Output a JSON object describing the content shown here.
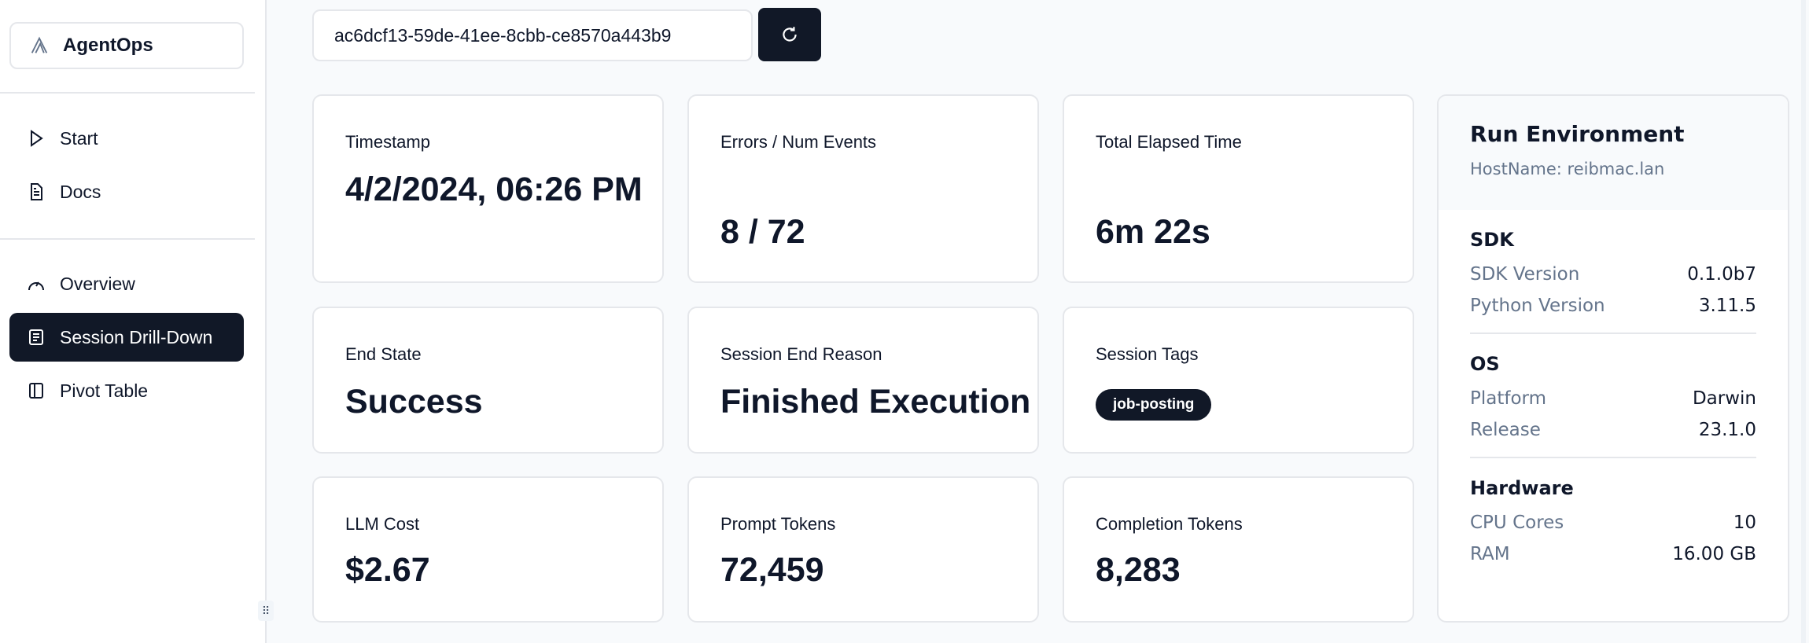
{
  "sidebar": {
    "brand": "AgentOps",
    "items": [
      {
        "label": "Start",
        "icon": "play-icon"
      },
      {
        "label": "Docs",
        "icon": "document-icon"
      },
      {
        "label": "Overview",
        "icon": "gauge-icon"
      },
      {
        "label": "Session Drill-Down",
        "icon": "list-icon",
        "active": true
      },
      {
        "label": "Pivot Table",
        "icon": "columns-icon"
      }
    ]
  },
  "session": {
    "id": "ac6dcf13-59de-41ee-8cbb-ce8570a443b9"
  },
  "cards": [
    {
      "label": "Timestamp",
      "value": "4/2/2024, 06:26 PM"
    },
    {
      "label": "Errors / Num Events",
      "value": "8 / 72"
    },
    {
      "label": "Total Elapsed Time",
      "value": "6m 22s"
    },
    {
      "label": "End State",
      "value": "Success"
    },
    {
      "label": "Session End Reason",
      "value": "Finished Execution"
    },
    {
      "label": "Session Tags",
      "tags": [
        "job-posting"
      ]
    },
    {
      "label": "LLM Cost",
      "value": "$2.67"
    },
    {
      "label": "Prompt Tokens",
      "value": "72,459"
    },
    {
      "label": "Completion Tokens",
      "value": "8,283"
    }
  ],
  "env": {
    "title": "Run Environment",
    "host": "HostName: reibmac.lan",
    "sections": [
      {
        "title": "SDK",
        "rows": [
          {
            "k": "SDK Version",
            "v": "0.1.0b7"
          },
          {
            "k": "Python Version",
            "v": "3.11.5"
          }
        ]
      },
      {
        "title": "OS",
        "rows": [
          {
            "k": "Platform",
            "v": "Darwin"
          },
          {
            "k": "Release",
            "v": "23.1.0"
          }
        ]
      },
      {
        "title": "Hardware",
        "rows": [
          {
            "k": "CPU Cores",
            "v": "10"
          },
          {
            "k": "RAM",
            "v": "16.00 GB"
          }
        ]
      }
    ]
  },
  "colors": {
    "primary": "#111827",
    "muted": "#64748b",
    "border": "#e5e7eb"
  }
}
